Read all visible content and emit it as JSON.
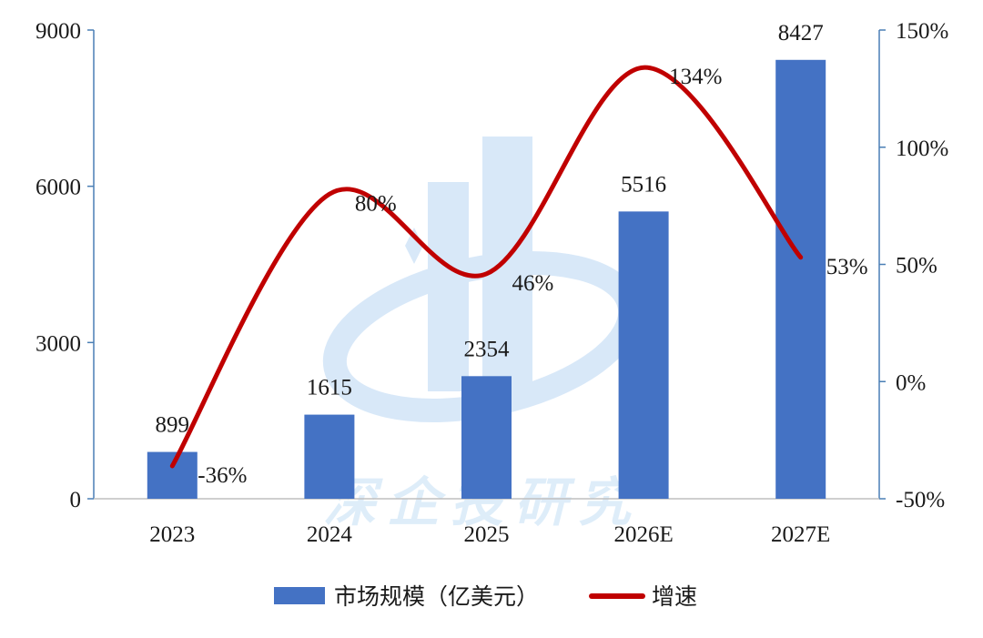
{
  "chart_data": {
    "type": "bar",
    "categories": [
      "2023",
      "2024",
      "2025",
      "2026E",
      "2027E"
    ],
    "series": [
      {
        "name": "市场规模（亿美元）",
        "type": "bar",
        "axis": "left",
        "values": [
          899,
          1615,
          2354,
          5516,
          8427
        ],
        "labels": [
          "899",
          "1615",
          "2354",
          "5516",
          "8427"
        ],
        "color": "#4472C4"
      },
      {
        "name": "增速",
        "type": "line",
        "axis": "right",
        "smooth": true,
        "values": [
          -36,
          80,
          46,
          134,
          53
        ],
        "labels": [
          "-36%",
          "80%",
          "46%",
          "134%",
          "53%"
        ],
        "color": "#C00000"
      }
    ],
    "left_axis": {
      "ylim": [
        0,
        9000
      ],
      "ticks": [
        0,
        3000,
        6000,
        9000
      ],
      "tick_labels": [
        "0",
        "3000",
        "6000",
        "9000"
      ]
    },
    "right_axis": {
      "ylim": [
        -50,
        150
      ],
      "ticks": [
        -50,
        0,
        50,
        100,
        150
      ],
      "tick_labels": [
        "-50%",
        "0%",
        "50%",
        "100%",
        "150%"
      ]
    },
    "grid": false,
    "legend_position": "bottom-center",
    "axis_color": "#4A7FB5"
  },
  "watermark_text": "深企投研究"
}
